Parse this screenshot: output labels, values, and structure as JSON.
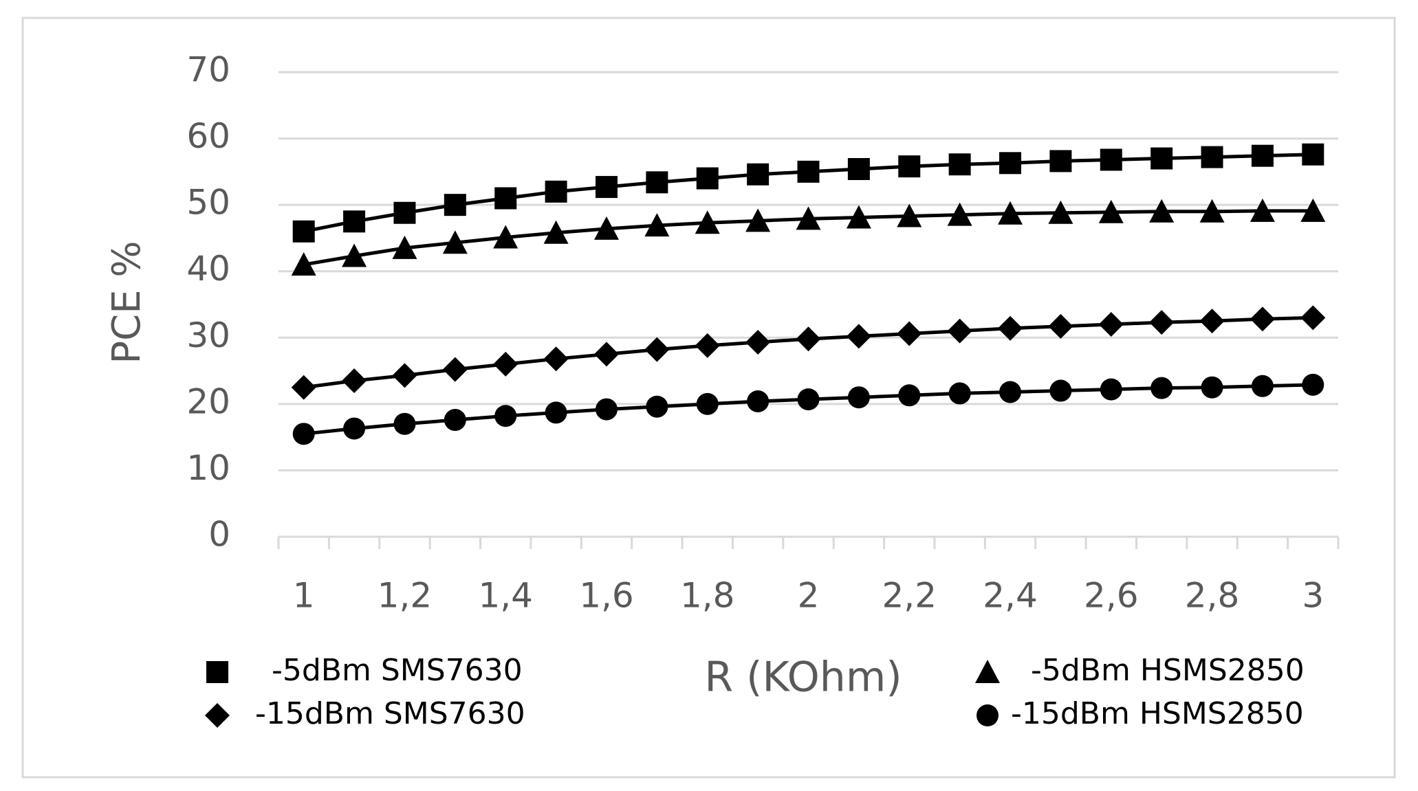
{
  "chart_data": {
    "type": "line",
    "y_label": "PCE %",
    "x_label": "R (KOhm)",
    "categories": [
      "1",
      null,
      "1,2",
      null,
      "1,4",
      null,
      "1,6",
      null,
      "1,8",
      null,
      "2",
      null,
      "2,2",
      null,
      "2,4",
      null,
      "2,6",
      null,
      "2,8",
      null,
      "3"
    ],
    "series": [
      {
        "name": "-5dBm SMS7630",
        "color": "#000000",
        "marker": "square",
        "values": [
          46,
          47.5,
          48.8,
          50,
          51,
          52,
          52.7,
          53.4,
          54,
          54.6,
          55,
          55.4,
          55.8,
          56.1,
          56.3,
          56.6,
          56.8,
          57,
          57.2,
          57.4,
          57.6
        ]
      },
      {
        "name": "-5dBm HSMS2850",
        "color": "#000000",
        "marker": "triangle",
        "values": [
          41,
          42.3,
          43.5,
          44.3,
          45.1,
          45.8,
          46.4,
          46.9,
          47.3,
          47.6,
          47.9,
          48.1,
          48.3,
          48.5,
          48.7,
          48.8,
          48.9,
          49,
          49,
          49.1,
          49.1
        ]
      },
      {
        "name": "-15dBm SMS7630",
        "color": "#000000",
        "marker": "diamond",
        "values": [
          22.5,
          23.5,
          24.3,
          25.2,
          26,
          26.8,
          27.5,
          28.2,
          28.8,
          29.3,
          29.8,
          30.2,
          30.6,
          31,
          31.4,
          31.7,
          32,
          32.3,
          32.5,
          32.8,
          33
        ]
      },
      {
        "name": "-15dBm HSMS2850",
        "color": "#000000",
        "marker": "circle",
        "values": [
          15.5,
          16.3,
          17,
          17.6,
          18.2,
          18.7,
          19.2,
          19.6,
          20,
          20.4,
          20.7,
          21,
          21.3,
          21.6,
          21.8,
          22,
          22.2,
          22.4,
          22.5,
          22.7,
          22.9
        ]
      }
    ],
    "ylim": [
      0,
      70
    ],
    "yticks": [
      0,
      10,
      20,
      30,
      40,
      50,
      60,
      70
    ],
    "grid": true
  }
}
